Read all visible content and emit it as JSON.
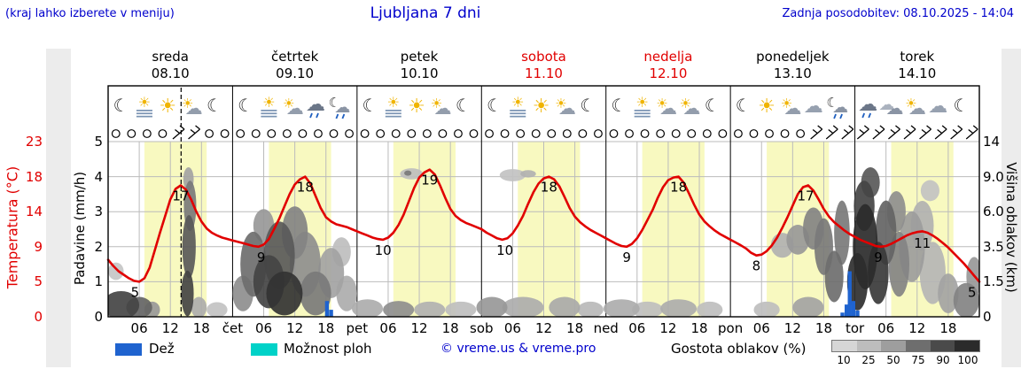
{
  "header": {
    "menu_hint": "(kraj lahko izberete v meniju)",
    "title": "Ljubljana 7 dni",
    "last_update": "Zadnja posodobitev: 08.10.2025 - 14:04"
  },
  "colors": {
    "blue_text": "#0000cc",
    "red": "#e10000",
    "day_band_yellow": "#f8f9c0",
    "rain_blue": "#1f63cf",
    "showers_cyan": "#00d2c8",
    "grid_gray": "#bbbbbb",
    "panel_gray": "#ececec"
  },
  "days": [
    {
      "name": "sreda",
      "date": "08.10",
      "weekend": false
    },
    {
      "name": "četrtek",
      "date": "09.10",
      "weekend": false
    },
    {
      "name": "petek",
      "date": "10.10",
      "weekend": false
    },
    {
      "name": "sobota",
      "date": "11.10",
      "weekend": true
    },
    {
      "name": "nedelja",
      "date": "12.10",
      "weekend": true
    },
    {
      "name": "ponedeljek",
      "date": "13.10",
      "weekend": false
    },
    {
      "name": "torek",
      "date": "14.10",
      "weekend": false
    }
  ],
  "axes": {
    "temp_label": "Temperatura (°C)",
    "temp_ticks": [
      "23",
      "18",
      "14",
      "9",
      "5",
      "0"
    ],
    "precip_label": "Padavine (mm/h)",
    "precip_ticks": [
      "5",
      "4",
      "3",
      "2",
      "1",
      "0"
    ],
    "cloud_label": "Višina oblakov (km)",
    "cloud_ticks": [
      "14",
      "9.0",
      "6.0",
      "3.5",
      "1.5",
      "0"
    ],
    "hour_ticks": [
      "06",
      "12",
      "18"
    ],
    "day_abbrevs": [
      "čet",
      "pet",
      "sob",
      "ned",
      "pon",
      "tor"
    ]
  },
  "legend": {
    "rain": "Dež",
    "showers": "Možnost ploh",
    "copyright": "© vreme.us & vreme.pro",
    "cloud_density": "Gostota oblakov (%)",
    "density_ticks": [
      "10",
      "25",
      "50",
      "75",
      "90",
      "100"
    ],
    "density_shades": [
      "#d6d6d6",
      "#bdbdbd",
      "#9e9e9e",
      "#6e6e6e",
      "#4a4a4a",
      "#2b2b2b"
    ]
  },
  "chart_data": {
    "type": "line",
    "title": "Ljubljana 7 dni",
    "x_unit": "hour",
    "x_range_hours": [
      0,
      168
    ],
    "temp_axis_stops": [
      [
        0,
        0
      ],
      [
        5,
        1
      ],
      [
        9,
        2
      ],
      [
        14,
        3
      ],
      [
        18,
        4
      ],
      [
        23,
        5
      ]
    ],
    "cloud_axis_stops": [
      [
        0,
        0
      ],
      [
        1.5,
        1
      ],
      [
        3.5,
        2
      ],
      [
        6,
        3
      ],
      [
        9,
        4
      ],
      [
        14,
        5
      ]
    ],
    "daylight_band_hours": [
      7,
      19
    ],
    "now_line_hour": 14.07,
    "temperature_series": [
      [
        0,
        7.5
      ],
      [
        1,
        6.8
      ],
      [
        2,
        6.2
      ],
      [
        3,
        5.8
      ],
      [
        4,
        5.4
      ],
      [
        5,
        5.1
      ],
      [
        6,
        5.0
      ],
      [
        7,
        5.4
      ],
      [
        8,
        6.6
      ],
      [
        9,
        8.6
      ],
      [
        10,
        11
      ],
      [
        11,
        13.4
      ],
      [
        12,
        15.4
      ],
      [
        13,
        16.6
      ],
      [
        14,
        17
      ],
      [
        15,
        16.5
      ],
      [
        16,
        15.4
      ],
      [
        17,
        14
      ],
      [
        18,
        12.6
      ],
      [
        19,
        11.6
      ],
      [
        20,
        11
      ],
      [
        21,
        10.6
      ],
      [
        22,
        10.3
      ],
      [
        23,
        10.1
      ],
      [
        24,
        9.9
      ],
      [
        26,
        9.5
      ],
      [
        28,
        9.1
      ],
      [
        29,
        9
      ],
      [
        30,
        9.3
      ],
      [
        31,
        10.1
      ],
      [
        32,
        11.5
      ],
      [
        33,
        13
      ],
      [
        34,
        14.6
      ],
      [
        35,
        16
      ],
      [
        36,
        17.1
      ],
      [
        37,
        17.7
      ],
      [
        38,
        18
      ],
      [
        39,
        17.2
      ],
      [
        40,
        15.8
      ],
      [
        41,
        14.4
      ],
      [
        42,
        13.2
      ],
      [
        43,
        12.6
      ],
      [
        44,
        12.2
      ],
      [
        45,
        12
      ],
      [
        46,
        11.8
      ],
      [
        47,
        11.5
      ],
      [
        48,
        11.2
      ],
      [
        49,
        10.9
      ],
      [
        50,
        10.6
      ],
      [
        51,
        10.3
      ],
      [
        52,
        10.1
      ],
      [
        53,
        10
      ],
      [
        54,
        10.3
      ],
      [
        55,
        11
      ],
      [
        56,
        12.1
      ],
      [
        57,
        13.6
      ],
      [
        58,
        15.2
      ],
      [
        59,
        16.7
      ],
      [
        60,
        17.9
      ],
      [
        61,
        18.6
      ],
      [
        62,
        19
      ],
      [
        63,
        18.3
      ],
      [
        64,
        17
      ],
      [
        65,
        15.6
      ],
      [
        66,
        14.3
      ],
      [
        67,
        13.4
      ],
      [
        68,
        12.8
      ],
      [
        69,
        12.4
      ],
      [
        70,
        12.1
      ],
      [
        71,
        11.8
      ],
      [
        72,
        11.5
      ],
      [
        73,
        11
      ],
      [
        74,
        10.6
      ],
      [
        75,
        10.2
      ],
      [
        76,
        10
      ],
      [
        77,
        10.2
      ],
      [
        78,
        10.9
      ],
      [
        79,
        12
      ],
      [
        80,
        13.4
      ],
      [
        81,
        14.9
      ],
      [
        82,
        16.2
      ],
      [
        83,
        17.2
      ],
      [
        84,
        17.8
      ],
      [
        85,
        18
      ],
      [
        86,
        17.7
      ],
      [
        87,
        16.9
      ],
      [
        88,
        15.7
      ],
      [
        89,
        14.4
      ],
      [
        90,
        13.3
      ],
      [
        91,
        12.5
      ],
      [
        92,
        11.9
      ],
      [
        93,
        11.4
      ],
      [
        94,
        11
      ],
      [
        95,
        10.6
      ],
      [
        96,
        10.2
      ],
      [
        97,
        9.8
      ],
      [
        98,
        9.4
      ],
      [
        99,
        9.1
      ],
      [
        100,
        9
      ],
      [
        101,
        9.4
      ],
      [
        102,
        10.2
      ],
      [
        103,
        11.4
      ],
      [
        104,
        12.8
      ],
      [
        105,
        14.2
      ],
      [
        106,
        15.6
      ],
      [
        107,
        16.8
      ],
      [
        108,
        17.6
      ],
      [
        109,
        17.9
      ],
      [
        110,
        18
      ],
      [
        111,
        17.3
      ],
      [
        112,
        16.1
      ],
      [
        113,
        14.8
      ],
      [
        114,
        13.6
      ],
      [
        115,
        12.6
      ],
      [
        116,
        11.9
      ],
      [
        117,
        11.3
      ],
      [
        118,
        10.8
      ],
      [
        119,
        10.4
      ],
      [
        120,
        10
      ],
      [
        121,
        9.6
      ],
      [
        122,
        9.2
      ],
      [
        123,
        8.8
      ],
      [
        124,
        8.3
      ],
      [
        125,
        8
      ],
      [
        126,
        8.1
      ],
      [
        127,
        8.5
      ],
      [
        128,
        9.2
      ],
      [
        129,
        10.3
      ],
      [
        130,
        11.7
      ],
      [
        131,
        13.2
      ],
      [
        132,
        14.7
      ],
      [
        133,
        16
      ],
      [
        134,
        16.8
      ],
      [
        135,
        17
      ],
      [
        136,
        16.4
      ],
      [
        137,
        15.4
      ],
      [
        138,
        14.3
      ],
      [
        139,
        13.3
      ],
      [
        140,
        12.5
      ],
      [
        141,
        11.9
      ],
      [
        142,
        11.3
      ],
      [
        143,
        10.8
      ],
      [
        144,
        10.4
      ],
      [
        145,
        10
      ],
      [
        146,
        9.7
      ],
      [
        147,
        9.4
      ],
      [
        148,
        9.1
      ],
      [
        149,
        9
      ],
      [
        150,
        9.1
      ],
      [
        151,
        9.4
      ],
      [
        152,
        9.8
      ],
      [
        153,
        10.2
      ],
      [
        154,
        10.6
      ],
      [
        155,
        10.9
      ],
      [
        156,
        11.1
      ],
      [
        157,
        11.2
      ],
      [
        158,
        11
      ],
      [
        159,
        10.6
      ],
      [
        160,
        10.1
      ],
      [
        161,
        9.5
      ],
      [
        162,
        8.9
      ],
      [
        163,
        8.3
      ],
      [
        164,
        7.7
      ],
      [
        165,
        7.1
      ],
      [
        166,
        6.4
      ],
      [
        167,
        5.7
      ],
      [
        168,
        5
      ]
    ],
    "temperature_labels": [
      {
        "h": 5.2,
        "v": 5,
        "t": "5"
      },
      {
        "h": 14,
        "v": 17,
        "t": "17"
      },
      {
        "h": 29.5,
        "v": 9,
        "t": "9"
      },
      {
        "h": 38,
        "v": 18,
        "t": "18"
      },
      {
        "h": 53,
        "v": 10,
        "t": "10"
      },
      {
        "h": 62,
        "v": 19,
        "t": "19"
      },
      {
        "h": 76.5,
        "v": 10,
        "t": "10"
      },
      {
        "h": 85,
        "v": 18,
        "t": "18"
      },
      {
        "h": 100,
        "v": 9,
        "t": "9"
      },
      {
        "h": 110,
        "v": 18,
        "t": "18"
      },
      {
        "h": 125,
        "v": 8,
        "t": "8"
      },
      {
        "h": 134.5,
        "v": 17,
        "t": "17"
      },
      {
        "h": 148.5,
        "v": 9,
        "t": "9"
      },
      {
        "h": 157,
        "v": 11,
        "t": "11"
      },
      {
        "h": 166.6,
        "v": 5,
        "t": "5"
      }
    ],
    "precip_bars_mm": [
      [
        42.2,
        0.45
      ],
      [
        43.0,
        0.2
      ],
      [
        141.6,
        0.12
      ],
      [
        142.4,
        0.35
      ],
      [
        143.0,
        1.3
      ],
      [
        143.7,
        0.45
      ],
      [
        144.5,
        0.18
      ]
    ],
    "cloud_blobs": [
      [
        2.5,
        0.5,
        3.5,
        0.7,
        80
      ],
      [
        6,
        0.4,
        2.5,
        0.5,
        65
      ],
      [
        8.5,
        0.3,
        1.5,
        0.4,
        40
      ],
      [
        1.5,
        2.1,
        1.5,
        0.5,
        18
      ],
      [
        15.3,
        1,
        1.2,
        1.1,
        80
      ],
      [
        15.6,
        3.5,
        1.3,
        2,
        70
      ],
      [
        15.8,
        6.5,
        1.2,
        2,
        55
      ],
      [
        15.5,
        8.8,
        1,
        1.2,
        35
      ],
      [
        17.5,
        0.4,
        1.5,
        0.5,
        30
      ],
      [
        21,
        0.3,
        2,
        0.35,
        20
      ],
      [
        26,
        1,
        2,
        0.8,
        45
      ],
      [
        28,
        2.5,
        2.5,
        1.8,
        60
      ],
      [
        31,
        1.5,
        3,
        1.3,
        80
      ],
      [
        33,
        3,
        3,
        2,
        70
      ],
      [
        34,
        1,
        3.5,
        1,
        88
      ],
      [
        30,
        5,
        2,
        1.2,
        40
      ],
      [
        36,
        4.5,
        2.5,
        1.8,
        50
      ],
      [
        38,
        2.5,
        3,
        1.8,
        45
      ],
      [
        40,
        1,
        3,
        1,
        55
      ],
      [
        43,
        2,
        2.5,
        1.3,
        35
      ],
      [
        45,
        3.2,
        1.8,
        0.9,
        22
      ],
      [
        46,
        1,
        2,
        0.8,
        30
      ],
      [
        50,
        0.35,
        3,
        0.45,
        30
      ],
      [
        56,
        0.3,
        3,
        0.45,
        45
      ],
      [
        58.5,
        9.4,
        2.2,
        0.7,
        22
      ],
      [
        57.8,
        9.5,
        0.7,
        0.35,
        55
      ],
      [
        62,
        0.3,
        3,
        0.4,
        28
      ],
      [
        68,
        0.3,
        3,
        0.4,
        22
      ],
      [
        74,
        0.4,
        3,
        0.5,
        40
      ],
      [
        78,
        9.2,
        2.5,
        0.7,
        20
      ],
      [
        81,
        9.4,
        1.5,
        0.5,
        28
      ],
      [
        80,
        0.4,
        4,
        0.5,
        30
      ],
      [
        88,
        0.4,
        3,
        0.5,
        32
      ],
      [
        93,
        0.3,
        2.5,
        0.4,
        25
      ],
      [
        99,
        0.35,
        3.5,
        0.45,
        30
      ],
      [
        104,
        0.3,
        3,
        0.4,
        22
      ],
      [
        110,
        0.35,
        3.5,
        0.45,
        30
      ],
      [
        116,
        0.3,
        2.5,
        0.4,
        22
      ],
      [
        127,
        0.3,
        2.5,
        0.4,
        22
      ],
      [
        130,
        3.6,
        2.2,
        0.8,
        28
      ],
      [
        133,
        4,
        2.2,
        1,
        40
      ],
      [
        136,
        4.8,
        2,
        1.5,
        50
      ],
      [
        138,
        3.5,
        1.8,
        1.8,
        55
      ],
      [
        135,
        0.4,
        3,
        0.5,
        35
      ],
      [
        140,
        1.8,
        1.8,
        1.3,
        60
      ],
      [
        141.5,
        4.5,
        1.5,
        2.2,
        55
      ],
      [
        144.5,
        1.5,
        2,
        1.4,
        90
      ],
      [
        146,
        3.5,
        2.4,
        2.6,
        92
      ],
      [
        145.8,
        6.5,
        2,
        2,
        80
      ],
      [
        147,
        8.5,
        1.8,
        1.5,
        70
      ],
      [
        148.5,
        2,
        2,
        1.6,
        85
      ],
      [
        150,
        4.5,
        2,
        2.2,
        65
      ],
      [
        152,
        6,
        1.8,
        1.6,
        45
      ],
      [
        152.5,
        2.5,
        2,
        1.8,
        50
      ],
      [
        155,
        3.5,
        2.5,
        2.2,
        38
      ],
      [
        157,
        5,
        2.2,
        1.8,
        28
      ],
      [
        158.5,
        7.8,
        1.8,
        0.9,
        20
      ],
      [
        159,
        2,
        2.5,
        1.6,
        26
      ],
      [
        162,
        1,
        2,
        0.9,
        35
      ],
      [
        165.5,
        0.7,
        2.5,
        0.8,
        50
      ],
      [
        167,
        1.8,
        1.5,
        1,
        40
      ]
    ],
    "sky_symbols": {
      "count": 56,
      "barb_indices": [
        4,
        5,
        45,
        46,
        47,
        48,
        49,
        50,
        51,
        52,
        53,
        54,
        55
      ]
    },
    "day_icons": [
      [
        "moon",
        "sun-fog",
        "sun",
        "partly",
        "moon"
      ],
      [
        "moon",
        "sun-fog",
        "partly",
        "rain-cloud",
        "moon-rain"
      ],
      [
        "moon",
        "sun-fog",
        "sun",
        "partly",
        "moon"
      ],
      [
        "moon",
        "sun-fog",
        "sun",
        "partly",
        "moon"
      ],
      [
        "moon",
        "sun-fog",
        "partly",
        "partly",
        "moon"
      ],
      [
        "moon",
        "sun",
        "partly",
        "cloud",
        "moon-rain"
      ],
      [
        "rain-cloud",
        "clouds",
        "partly",
        "cloud",
        "moon"
      ]
    ]
  }
}
